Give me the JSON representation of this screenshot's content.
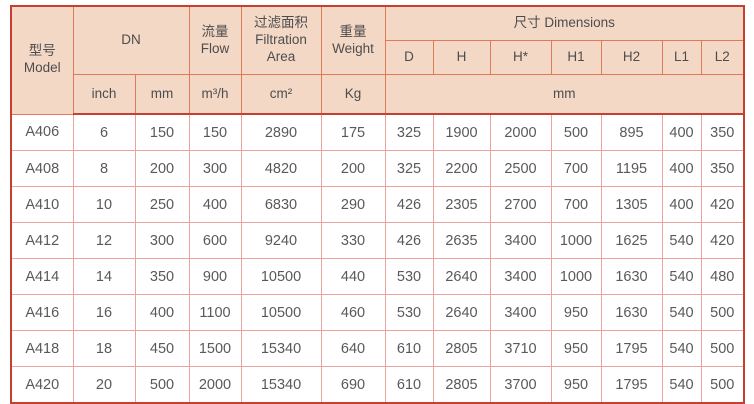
{
  "colors": {
    "header_bg": "#f4d8c6",
    "outer_border": "#c5402e",
    "header_grid": "#e2795a",
    "body_grid": "#eca59b",
    "text": "#58595b"
  },
  "table": {
    "header": {
      "model": "型号\nModel",
      "dn": "DN",
      "flow": "流量\nFlow",
      "filtration": "过滤面积\nFiltration\nArea",
      "weight": "重量\nWeight",
      "dimensions": "尺寸 Dimensions",
      "dim_cols": {
        "d": "D",
        "h": "H",
        "hstar": "H*",
        "h1": "H1",
        "h2": "H2",
        "l1": "L1",
        "l2": "L2"
      },
      "units": {
        "inch": "inch",
        "mm": "mm",
        "flow": "m³/h",
        "area": "cm²",
        "weight": "Kg",
        "dims": "mm"
      }
    },
    "rows": [
      {
        "model": "A406",
        "inch": "6",
        "mm": "150",
        "flow": "150",
        "area": "2890",
        "weight": "175",
        "d": "325",
        "h": "1900",
        "hstar": "2000",
        "h1": "500",
        "h2": "895",
        "l1": "400",
        "l2": "350"
      },
      {
        "model": "A408",
        "inch": "8",
        "mm": "200",
        "flow": "300",
        "area": "4820",
        "weight": "200",
        "d": "325",
        "h": "2200",
        "hstar": "2500",
        "h1": "700",
        "h2": "1195",
        "l1": "400",
        "l2": "350"
      },
      {
        "model": "A410",
        "inch": "10",
        "mm": "250",
        "flow": "400",
        "area": "6830",
        "weight": "290",
        "d": "426",
        "h": "2305",
        "hstar": "2700",
        "h1": "700",
        "h2": "1305",
        "l1": "400",
        "l2": "420"
      },
      {
        "model": "A412",
        "inch": "12",
        "mm": "300",
        "flow": "600",
        "area": "9240",
        "weight": "330",
        "d": "426",
        "h": "2635",
        "hstar": "3400",
        "h1": "1000",
        "h2": "1625",
        "l1": "540",
        "l2": "420"
      },
      {
        "model": "A414",
        "inch": "14",
        "mm": "350",
        "flow": "900",
        "area": "10500",
        "weight": "440",
        "d": "530",
        "h": "2640",
        "hstar": "3400",
        "h1": "1000",
        "h2": "1630",
        "l1": "540",
        "l2": "480"
      },
      {
        "model": "A416",
        "inch": "16",
        "mm": "400",
        "flow": "1100",
        "area": "10500",
        "weight": "460",
        "d": "530",
        "h": "2640",
        "hstar": "3400",
        "h1": "950",
        "h2": "1630",
        "l1": "540",
        "l2": "500"
      },
      {
        "model": "A418",
        "inch": "18",
        "mm": "450",
        "flow": "1500",
        "area": "15340",
        "weight": "640",
        "d": "610",
        "h": "2805",
        "hstar": "3710",
        "h1": "950",
        "h2": "1795",
        "l1": "540",
        "l2": "500"
      },
      {
        "model": "A420",
        "inch": "20",
        "mm": "500",
        "flow": "2000",
        "area": "15340",
        "weight": "690",
        "d": "610",
        "h": "2805",
        "hstar": "3700",
        "h1": "950",
        "h2": "1795",
        "l1": "540",
        "l2": "500"
      }
    ]
  }
}
